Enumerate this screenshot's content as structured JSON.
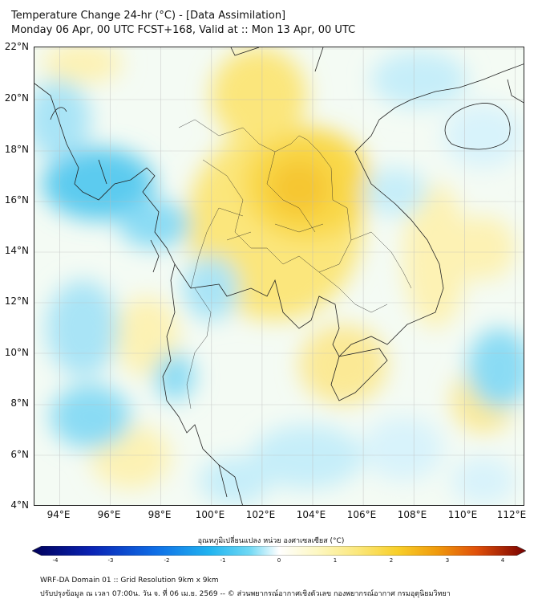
{
  "title_line1": "Temperature Change 24-hr (°C) - [Data Assimilation]",
  "title_line2": "Monday 06 Apr, 00 UTC FCST+168, Valid at :: Mon 13 Apr, 00 UTC",
  "lat_labels": [
    "22°N",
    "20°N",
    "18°N",
    "16°N",
    "14°N",
    "12°N",
    "10°N",
    "8°N",
    "6°N",
    "4°N"
  ],
  "lon_labels": [
    "94°E",
    "96°E",
    "98°E",
    "100°E",
    "102°E",
    "104°E",
    "106°E",
    "108°E",
    "110°E",
    "112°E"
  ],
  "colorbar": {
    "label": "อุณหภูมิเปลี่ยนแปลง หน่วย องศาเซลเซียส (°C)",
    "ticks": [
      "-4",
      "-3",
      "-2",
      "-1",
      "0",
      "1",
      "2",
      "3",
      "4"
    ],
    "colors": [
      "#00005a",
      "#0a23b4",
      "#0f6ee6",
      "#21b4f0",
      "#6fd8f4",
      "#c8f0fb",
      "#ffffff",
      "#fdf7c0",
      "#fbe77a",
      "#f8cf2a",
      "#f09a0c",
      "#e0500a",
      "#c01808",
      "#780000"
    ]
  },
  "footer_line1": "WRF-DA Domain 01 :: Grid Resolution 9km x 9km",
  "footer_line2": "ปรับปรุงข้อมูล ณ เวลา 07:00น. วัน จ. ที่ 06 เม.ย. 2569 -- © ส่วนพยากรณ์อากาศเชิงตัวเลข กองพยากรณ์อากาศ กรมอุตุนิยมวิทยา",
  "map": {
    "lat_range": [
      4,
      22.2
    ],
    "lon_range": [
      93,
      112.4
    ],
    "colors": {
      "warm": "#fbe46a",
      "cool": "#5ccbef",
      "background": "#eef8f2"
    }
  }
}
